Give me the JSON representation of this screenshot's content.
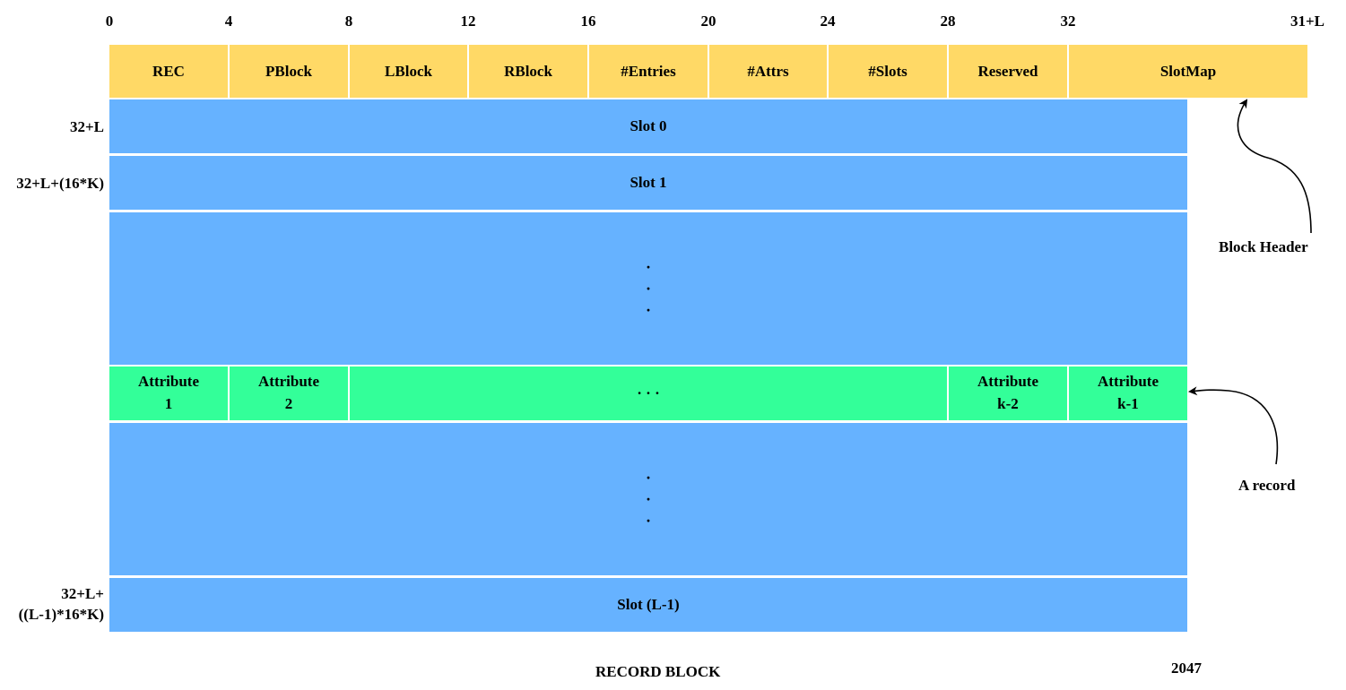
{
  "offsets": [
    "0",
    "4",
    "8",
    "12",
    "16",
    "20",
    "24",
    "28",
    "32",
    "31+L"
  ],
  "header_fields": [
    "REC",
    "PBlock",
    "LBlock",
    "RBlock",
    "#Entries",
    "#Attrs",
    "#Slots",
    "Reserved",
    "SlotMap"
  ],
  "slots": {
    "slot0": "Slot 0",
    "slot1": "Slot 1",
    "slot_last": "Slot (L-1)",
    "ellipsis": [
      "·",
      "·",
      "·"
    ]
  },
  "row_labels": {
    "slot0": "32+L",
    "slot1": "32+L+(16*K)",
    "slot_last": "32+L+\n((L-1)*16*K)"
  },
  "attributes": [
    "Attribute\n1",
    "Attribute\n2",
    "· · ·",
    "Attribute\nk-2",
    "Attribute\nk-1"
  ],
  "annotations": {
    "block_header": "Block Header",
    "a_record": "A record"
  },
  "footer": {
    "title": "RECORD BLOCK",
    "end_offset": "2047"
  },
  "colors": {
    "header": "#FFD966",
    "slot": "#66B2FF",
    "record": "#33FF99"
  }
}
